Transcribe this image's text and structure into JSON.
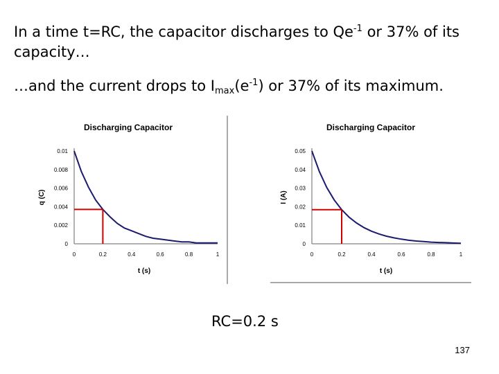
{
  "slide": {
    "line1_part1": "In a time t=RC, the capacitor discharges to Qe",
    "line1_sup": "-1",
    "line1_part2": " or 37% of its capacity…",
    "line2_part1": "…and the current drops to I",
    "line2_sub": "max",
    "line2_part2": "(e",
    "line2_sup": "-1",
    "line2_part3": ") or 37% of its maximum.",
    "rc_text": "RC=0.2 s",
    "page_number": "137"
  },
  "chart_data": [
    {
      "type": "line",
      "title": "Discharging Capacitor",
      "xlabel": "t (s)",
      "ylabel": "q (C)",
      "xlim": [
        0,
        1
      ],
      "ylim": [
        0,
        0.01
      ],
      "x_ticks": [
        0,
        0.2,
        0.4,
        0.6,
        0.8,
        1
      ],
      "x_tick_labels": [
        "0",
        "0.2",
        "0.4",
        "0.6",
        "0.8",
        "1"
      ],
      "y_ticks": [
        0,
        0.002,
        0.004,
        0.006,
        0.008,
        0.01
      ],
      "y_tick_labels": [
        "0",
        "0.002",
        "0.004",
        "0.006",
        "0.008",
        "0.01"
      ],
      "series": [
        {
          "color": "#1a1a6e",
          "x": [
            0,
            0.05,
            0.1,
            0.15,
            0.2,
            0.25,
            0.3,
            0.35,
            0.4,
            0.45,
            0.5,
            0.55,
            0.6,
            0.65,
            0.7,
            0.75,
            0.8,
            0.85,
            0.9,
            0.95,
            1
          ],
          "y": [
            0.01,
            0.0078,
            0.0061,
            0.0047,
            0.0037,
            0.0029,
            0.0022,
            0.0017,
            0.0014,
            0.0011,
            0.0008,
            0.0006,
            0.0005,
            0.0004,
            0.0003,
            0.0002,
            0.0002,
            0.0001,
            0.0001,
            0.0001,
            0.0001
          ]
        }
      ],
      "marker": {
        "x": 0.2,
        "y": 0.0037,
        "color": "#cc0000"
      },
      "grid": false,
      "legend": "none"
    },
    {
      "type": "line",
      "title": "Discharging Capacitor",
      "xlabel": "t (s)",
      "ylabel": "I (A)",
      "xlim": [
        0,
        1
      ],
      "ylim": [
        0,
        0.05
      ],
      "x_ticks": [
        0,
        0.2,
        0.4,
        0.6,
        0.8,
        1
      ],
      "x_tick_labels": [
        "0",
        "0.2",
        "0.4",
        "0.6",
        "0.8",
        "1"
      ],
      "y_ticks": [
        0,
        0.01,
        0.02,
        0.03,
        0.04,
        0.05
      ],
      "y_tick_labels": [
        "0",
        "0.01",
        "0.02",
        "0.03",
        "0.04",
        "0.05"
      ],
      "series": [
        {
          "color": "#1a1a6e",
          "x": [
            0,
            0.05,
            0.1,
            0.15,
            0.2,
            0.25,
            0.3,
            0.35,
            0.4,
            0.45,
            0.5,
            0.55,
            0.6,
            0.65,
            0.7,
            0.75,
            0.8,
            0.85,
            0.9,
            0.95,
            1
          ],
          "y": [
            0.05,
            0.0389,
            0.0303,
            0.0236,
            0.0184,
            0.0143,
            0.0112,
            0.0087,
            0.0068,
            0.0053,
            0.0041,
            0.0032,
            0.0025,
            0.0019,
            0.0015,
            0.0012,
            0.0009,
            0.0007,
            0.0006,
            0.0004,
            0.0003
          ]
        }
      ],
      "marker": {
        "x": 0.2,
        "y": 0.0184,
        "color": "#cc0000"
      },
      "grid": false,
      "legend": "none"
    }
  ]
}
